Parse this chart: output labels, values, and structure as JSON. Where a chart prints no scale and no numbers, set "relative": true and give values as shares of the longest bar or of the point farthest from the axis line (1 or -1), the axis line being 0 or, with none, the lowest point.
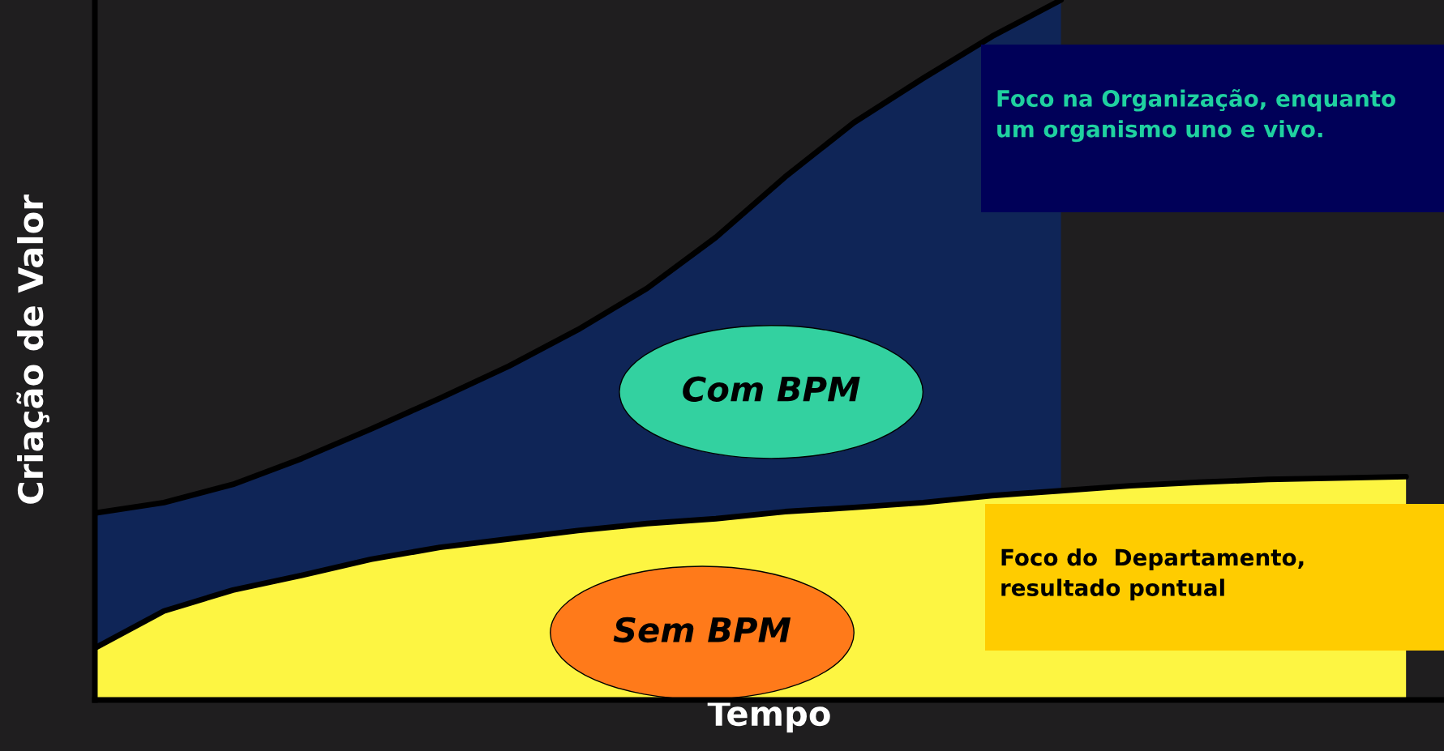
{
  "chart_data": {
    "type": "area",
    "relative": true,
    "categories": [
      null,
      null,
      null,
      null,
      null,
      null,
      null,
      null,
      null,
      null,
      null,
      null,
      null,
      null,
      null,
      null,
      null,
      null,
      null,
      null
    ],
    "series": [
      {
        "name": "Com BPM",
        "color": "#0f2557",
        "values": [
          0.267,
          0.282,
          0.308,
          0.345,
          0.387,
          0.431,
          0.477,
          0.529,
          0.588,
          0.661,
          0.747,
          0.825,
          0.888,
          0.948,
          1.0,
          null,
          null,
          null,
          null,
          null
        ]
      },
      {
        "name": "Sem BPM",
        "color": "#fdf542",
        "values": [
          0.074,
          0.127,
          0.157,
          0.178,
          0.201,
          0.218,
          0.23,
          0.242,
          0.252,
          0.259,
          0.269,
          0.275,
          0.282,
          0.292,
          0.299,
          0.306,
          0.311,
          0.315,
          0.317,
          0.319
        ]
      }
    ],
    "xlabel": "Tempo",
    "ylabel": "Criação de Valor",
    "annotations": [
      "Foco na Organização, enquanto um organismo uno e vivo.",
      "Foco do  Departamento, resultado pontual"
    ]
  }
}
